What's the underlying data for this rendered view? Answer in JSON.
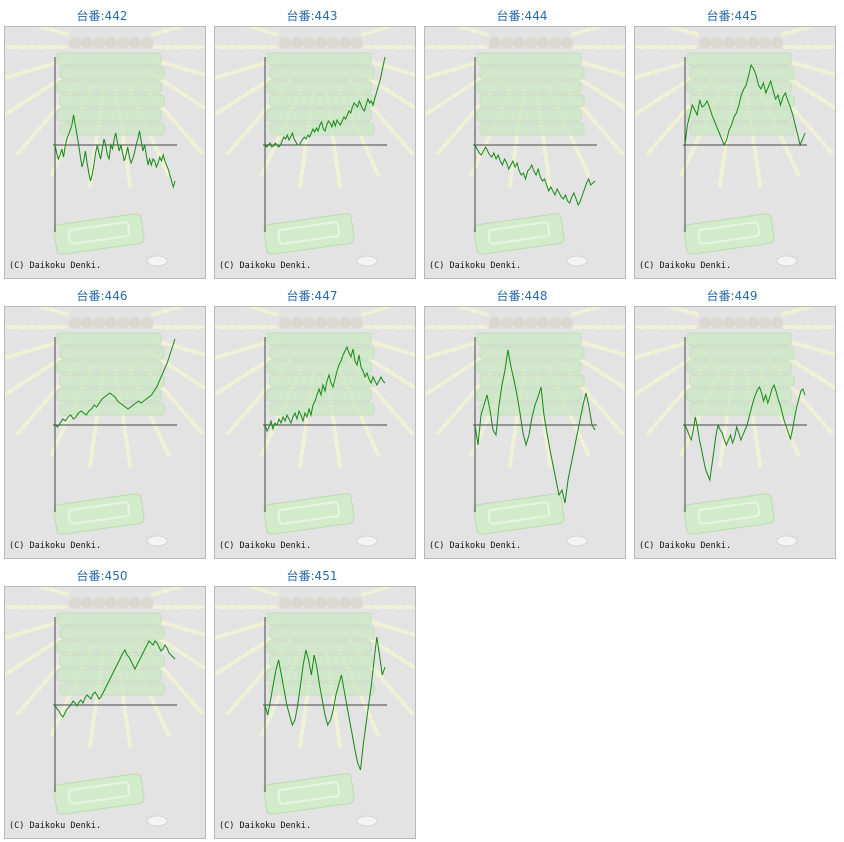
{
  "colors": {
    "line": "#138a13",
    "axis": "#444444",
    "title": "#2a6aa6",
    "background": "#e3e3e3"
  },
  "copyright": "(C) Daikoku Denki.",
  "machines": [
    {
      "label": "台番:442",
      "graph": [
        0,
        -8,
        -14,
        -10,
        -4,
        -12,
        -2,
        6,
        10,
        15,
        20,
        30,
        20,
        10,
        0,
        -12,
        -22,
        -16,
        -6,
        -18,
        -28,
        -36,
        -30,
        -20,
        -8,
        0,
        -8,
        -14,
        -4,
        6,
        0,
        -10,
        -14,
        0,
        -4,
        6,
        12,
        2,
        -6,
        0,
        -8,
        -16,
        -10,
        -2,
        -12,
        -18,
        -14,
        -8,
        0,
        6,
        14,
        4,
        -6,
        0,
        -10,
        -20,
        -14,
        -20,
        -14,
        -16,
        -22,
        -18,
        -12,
        -16,
        -10,
        -16,
        -20,
        -24,
        -30,
        -36,
        -42,
        -36
      ]
    },
    {
      "label": "台番:443",
      "graph": [
        0,
        -2,
        0,
        2,
        -2,
        -1,
        2,
        0,
        -2,
        0,
        4,
        8,
        6,
        10,
        5,
        8,
        12,
        6,
        3,
        0,
        0,
        3,
        6,
        8,
        6,
        10,
        8,
        12,
        16,
        13,
        17,
        14,
        20,
        23,
        16,
        14,
        20,
        24,
        22,
        18,
        24,
        19,
        25,
        22,
        20,
        24,
        28,
        26,
        30,
        34,
        32,
        38,
        42,
        40,
        38,
        44,
        40,
        36,
        34,
        40,
        46,
        42,
        44,
        40,
        46,
        52,
        58,
        64,
        72,
        80,
        88
      ]
    },
    {
      "label": "台番:444",
      "graph": [
        0,
        -4,
        -8,
        -10,
        -6,
        -2,
        -6,
        -10,
        -12,
        -8,
        -14,
        -10,
        -16,
        -20,
        -14,
        -18,
        -24,
        -20,
        -16,
        -22,
        -18,
        -26,
        -30,
        -28,
        -34,
        -26,
        -24,
        -20,
        -26,
        -30,
        -24,
        -32,
        -36,
        -34,
        -40,
        -46,
        -42,
        -46,
        -50,
        -44,
        -48,
        -52,
        -54,
        -50,
        -56,
        -58,
        -52,
        -48,
        -54,
        -60,
        -56,
        -50,
        -44,
        -38,
        -34,
        -40,
        -38,
        -36
      ]
    },
    {
      "label": "台番:445",
      "graph": [
        0,
        20,
        30,
        40,
        35,
        30,
        45,
        38,
        40,
        44,
        38,
        30,
        24,
        18,
        12,
        6,
        0,
        5,
        15,
        20,
        28,
        32,
        40,
        50,
        56,
        60,
        70,
        80,
        76,
        70,
        60,
        56,
        62,
        52,
        58,
        64,
        54,
        46,
        50,
        40,
        48,
        52,
        44,
        38,
        30,
        20,
        10,
        0,
        6,
        12
      ]
    },
    {
      "label": "台番:446",
      "graph": [
        0,
        -2,
        2,
        6,
        4,
        8,
        10,
        6,
        8,
        12,
        14,
        12,
        10,
        14,
        16,
        20,
        18,
        22,
        26,
        28,
        30,
        32,
        30,
        28,
        24,
        22,
        20,
        18,
        16,
        18,
        20,
        22,
        24,
        22,
        24,
        26,
        28,
        30,
        34,
        38,
        44,
        50,
        56,
        62,
        70,
        78,
        86
      ]
    },
    {
      "label": "台番:447",
      "graph": [
        0,
        -6,
        -2,
        4,
        -4,
        2,
        0,
        6,
        2,
        8,
        4,
        10,
        6,
        2,
        8,
        12,
        6,
        14,
        10,
        4,
        12,
        8,
        16,
        10,
        20,
        24,
        30,
        36,
        30,
        40,
        34,
        44,
        50,
        42,
        38,
        46,
        54,
        60,
        64,
        70,
        74,
        78,
        72,
        68,
        76,
        64,
        60,
        70,
        58,
        54,
        48,
        52,
        46,
        42,
        48,
        44,
        40,
        44,
        48,
        44,
        42
      ]
    },
    {
      "label": "台番:448",
      "graph": [
        0,
        -20,
        10,
        20,
        30,
        15,
        -5,
        -10,
        20,
        40,
        55,
        75,
        58,
        45,
        30,
        12,
        -8,
        -20,
        -10,
        8,
        20,
        28,
        38,
        10,
        -8,
        -25,
        -40,
        -55,
        -70,
        -65,
        -78,
        -55,
        -40,
        -25,
        -10,
        5,
        20,
        32,
        18,
        0,
        -5
      ]
    },
    {
      "label": "台番:449",
      "graph": [
        0,
        -5,
        -10,
        -15,
        -5,
        8,
        -2,
        -15,
        -25,
        -35,
        -45,
        -50,
        -55,
        -40,
        -25,
        -10,
        0,
        -5,
        -8,
        -15,
        -20,
        -15,
        -10,
        -18,
        -12,
        -2,
        -8,
        -15,
        -10,
        -5,
        0,
        8,
        16,
        24,
        30,
        35,
        38,
        32,
        24,
        30,
        22,
        28,
        36,
        40,
        34,
        26,
        20,
        12,
        4,
        -2,
        -8,
        -14,
        -4,
        8,
        18,
        26,
        34,
        36,
        30
      ]
    },
    {
      "label": "台番:450",
      "graph": [
        0,
        -4,
        -6,
        -10,
        -12,
        -8,
        -4,
        -2,
        0,
        4,
        2,
        -1,
        3,
        5,
        2,
        7,
        10,
        8,
        6,
        11,
        13,
        10,
        6,
        8,
        12,
        16,
        20,
        24,
        28,
        32,
        36,
        40,
        44,
        48,
        52,
        55,
        50,
        48,
        44,
        40,
        36,
        40,
        44,
        48,
        52,
        56,
        60,
        64,
        62,
        60,
        64,
        62,
        58,
        54,
        56,
        60,
        57,
        52,
        50,
        48,
        46
      ]
    },
    {
      "label": "台番:451",
      "graph": [
        0,
        -10,
        5,
        20,
        35,
        45,
        30,
        15,
        0,
        -10,
        -20,
        -15,
        0,
        20,
        40,
        55,
        45,
        30,
        50,
        38,
        20,
        5,
        -10,
        -20,
        -15,
        -5,
        10,
        20,
        30,
        15,
        0,
        -15,
        -30,
        -45,
        -58,
        -65,
        -40,
        -20,
        0,
        20,
        45,
        68,
        50,
        30,
        38
      ]
    }
  ]
}
